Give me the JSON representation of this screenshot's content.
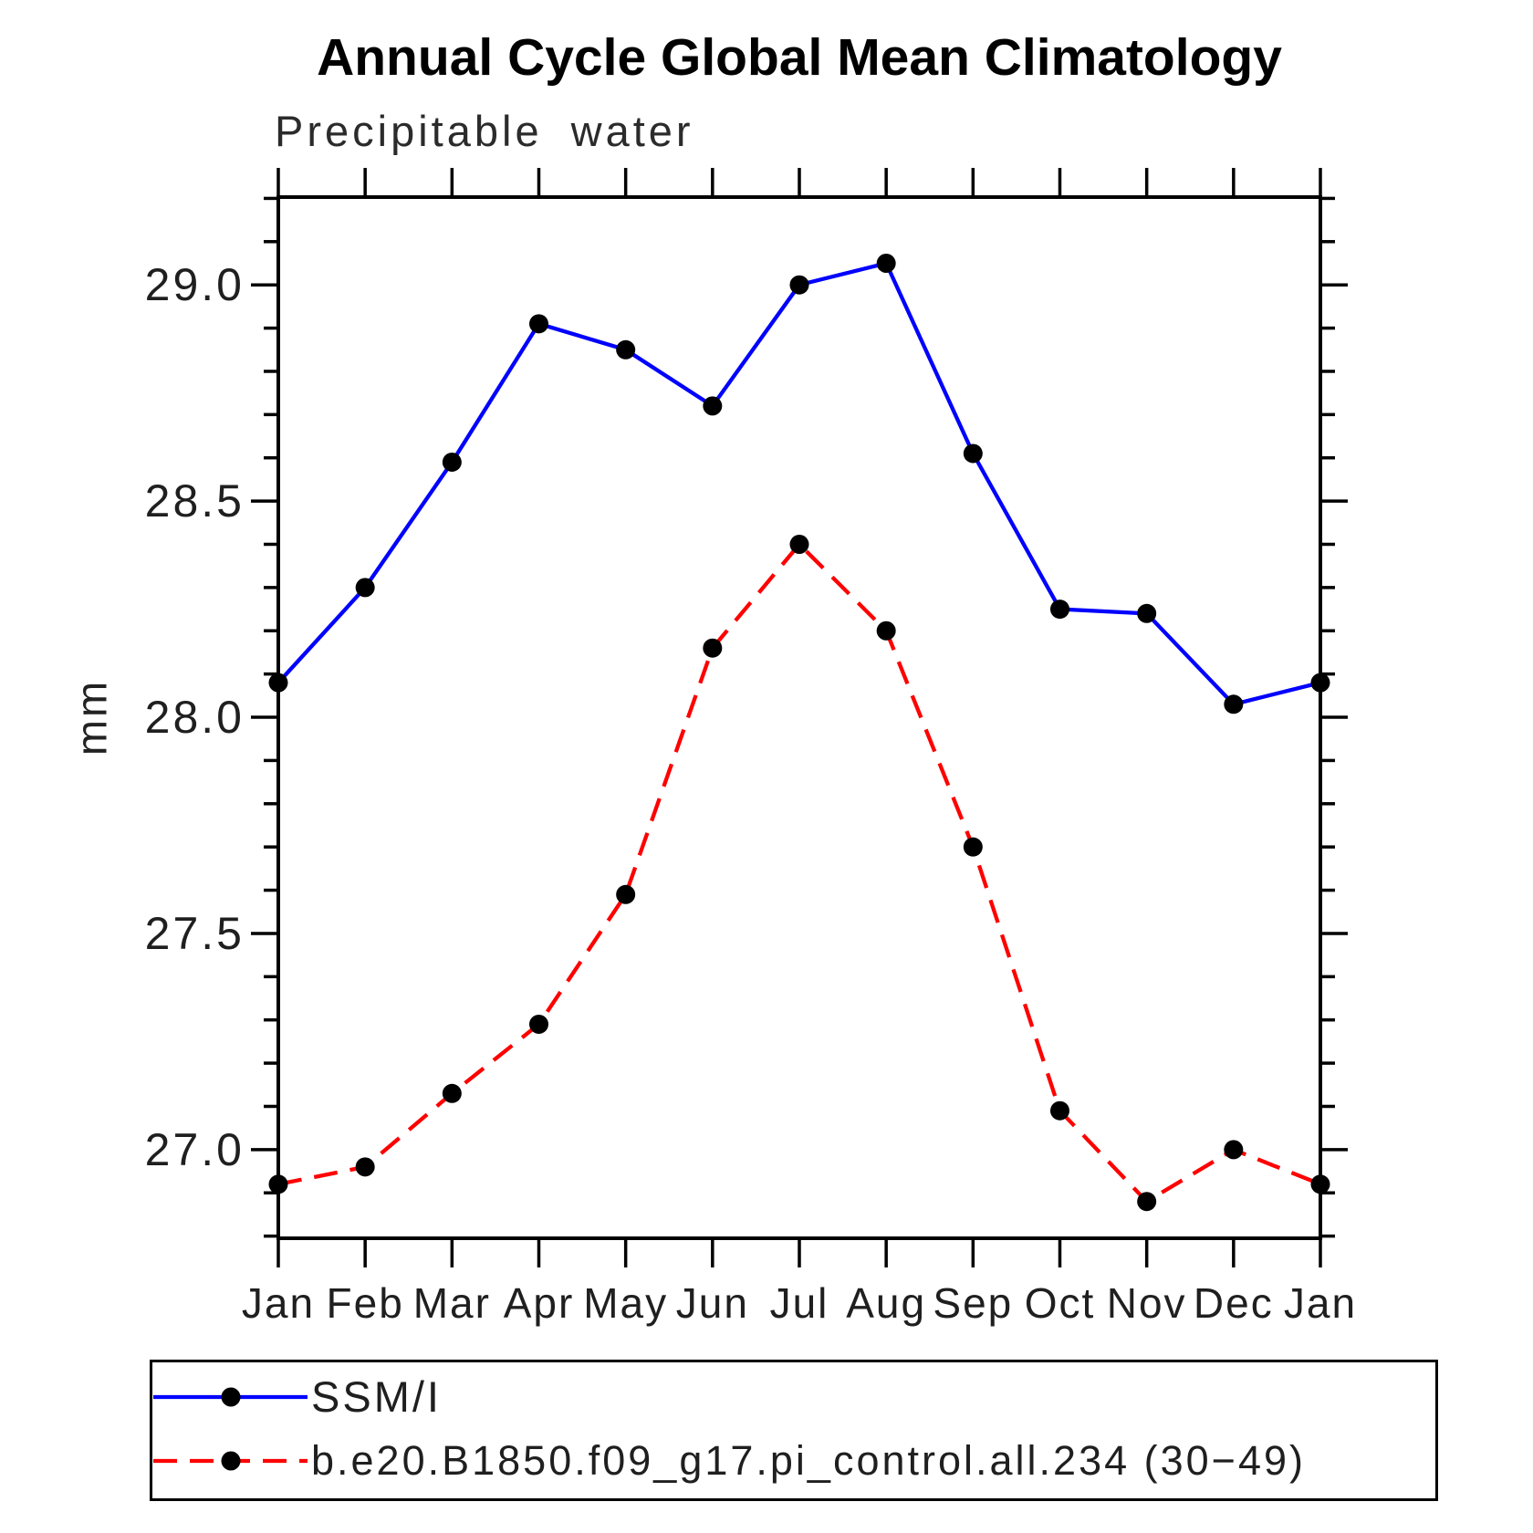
{
  "page": {
    "background": "#ffffff"
  },
  "chart_data": {
    "type": "line",
    "title": "Annual Cycle Global Mean Climatology",
    "subtitle": "Precipitable water",
    "ylabel": "mm",
    "xlabel": "",
    "x_categories": [
      "Jan",
      "Feb",
      "Mar",
      "Apr",
      "May",
      "Jun",
      "Jul",
      "Aug",
      "Sep",
      "Oct",
      "Nov",
      "Dec",
      "Jan"
    ],
    "ylim": [
      26.795,
      29.203
    ],
    "ytick_major": [
      27.0,
      27.5,
      28.0,
      28.5,
      29.0
    ],
    "ytick_major_labels": [
      "27.0",
      "27.5",
      "28.0",
      "28.5",
      "29.0"
    ],
    "ytick_minor_step": 0.1,
    "grid": false,
    "colors": {
      "axis": "#000000",
      "marker": "#000000",
      "obs": "#0000ff",
      "model": "#ff0000"
    },
    "legend": {
      "position": "bottom-left",
      "border": true
    },
    "series": [
      {
        "name": "SSM/I",
        "color": "#0000ff",
        "style": "solid",
        "marker": "circle",
        "marker_color": "#000000",
        "values": [
          28.08,
          28.3,
          28.59,
          28.91,
          28.85,
          28.72,
          29.0,
          29.05,
          28.61,
          28.25,
          28.24,
          28.03,
          28.08
        ]
      },
      {
        "name": "b.e20.B1850.f09_g17.pi_control.all.234 (30−49)",
        "color": "#ff0000",
        "style": "dashed",
        "marker": "circle",
        "marker_color": "#000000",
        "values": [
          26.92,
          26.96,
          27.13,
          27.29,
          27.59,
          28.16,
          28.4,
          28.2,
          27.7,
          27.09,
          26.88,
          27.0,
          26.92
        ]
      }
    ]
  }
}
